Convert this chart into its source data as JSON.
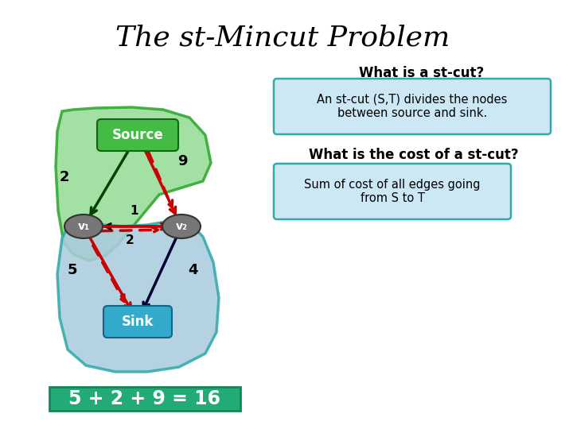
{
  "title": "The st-Mincut Problem",
  "subtitle": "What is a st-cut?",
  "box1_text": "An st-cut (S,T) divides the nodes\nbetween source and sink.",
  "cost_question": "What is the cost of a st-cut?",
  "box2_text": "Sum of cost of all edges going\nfrom S to T",
  "equation": "5 + 2 + 9 = 16",
  "source_label": "Source",
  "sink_label": "Sink",
  "v1_label": "v₁",
  "v2_label": "v₂",
  "bg_color": "#ffffff",
  "title_color": "#000000",
  "source_bg": "#44bb44",
  "sink_bg": "#33aacc",
  "v1_bg": "#777777",
  "v2_bg": "#777777",
  "S_region_color": "#99dd99",
  "T_region_color": "#aaccdd",
  "S_edge_color": "#33aa33",
  "T_edge_color": "#33aaaa",
  "eq_bg": "#22aa77",
  "info_box_bg": "#cce8f4",
  "info_box_edge": "#33aaaa",
  "dark_green": "#004400",
  "dark_navy": "#000033",
  "red_solid": "#cc0000",
  "red_dashed": "#cc0000"
}
